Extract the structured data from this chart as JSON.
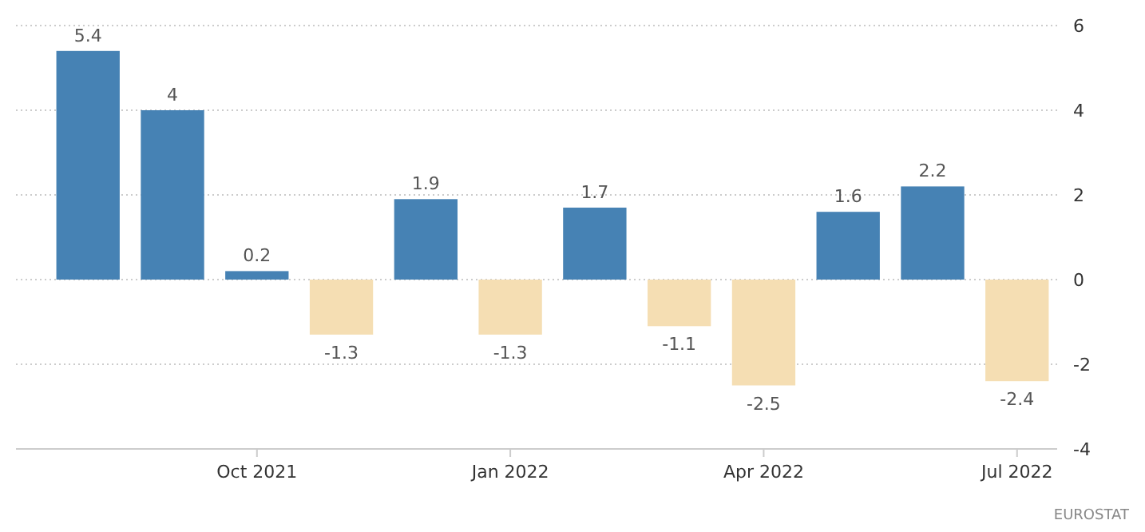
{
  "chart_data": {
    "type": "bar",
    "categories": [
      null,
      null,
      "Oct 2021",
      null,
      null,
      "Jan 2022",
      null,
      null,
      "Apr 2022",
      null,
      null,
      "Jul 2022"
    ],
    "values": [
      5.4,
      4,
      0.2,
      -1.3,
      1.9,
      -1.3,
      1.7,
      -1.1,
      -2.5,
      1.6,
      2.2,
      -2.4
    ],
    "colors": [
      "#4682b4",
      "#4682b4",
      "#4682b4",
      "#f5deb3",
      "#4682b4",
      "#f5deb3",
      "#4682b4",
      "#f5deb3",
      "#f5deb3",
      "#4682b4",
      "#4682b4",
      "#f5deb3"
    ],
    "ylim": [
      -4,
      6
    ],
    "yticks": [
      -4,
      -2,
      0,
      2,
      4,
      6
    ],
    "grid": "y",
    "data_labels": true,
    "annotations": [
      "EUROSTAT"
    ]
  }
}
